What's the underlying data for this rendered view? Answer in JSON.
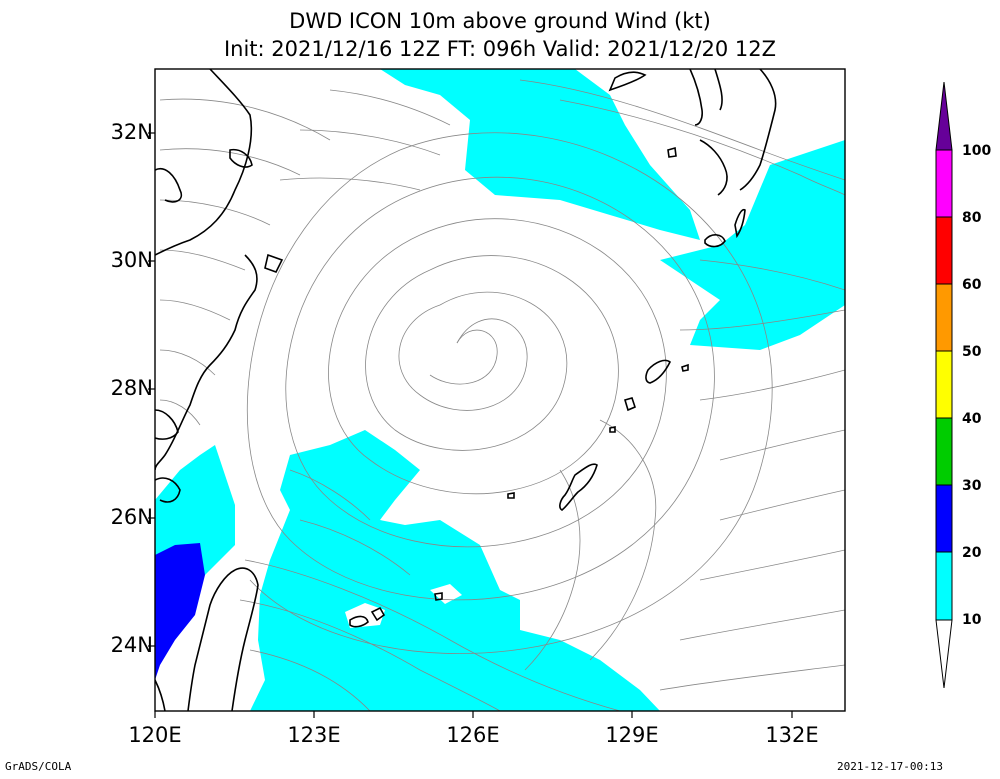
{
  "title_line1": "DWD ICON 10m above ground Wind (kt)",
  "title_line2": "Init: 2021/12/16 12Z  FT: 096h  Valid: 2021/12/20 12Z",
  "lat_labels": [
    "32N",
    "30N",
    "28N",
    "26N",
    "24N"
  ],
  "lon_labels": [
    "120E",
    "123E",
    "126E",
    "129E",
    "132E"
  ],
  "colorbar": {
    "labels": [
      "10",
      "20",
      "30",
      "40",
      "50",
      "60",
      "80",
      "100"
    ],
    "colors": [
      "#ffffff",
      "#00ffff",
      "#0000ff",
      "#00cc00",
      "#ffff00",
      "#ff9900",
      "#ff0000",
      "#ff00ff",
      "#660099"
    ]
  },
  "footer_left": "GrADS/COLA",
  "footer_right": "2021-12-17-00:13"
}
